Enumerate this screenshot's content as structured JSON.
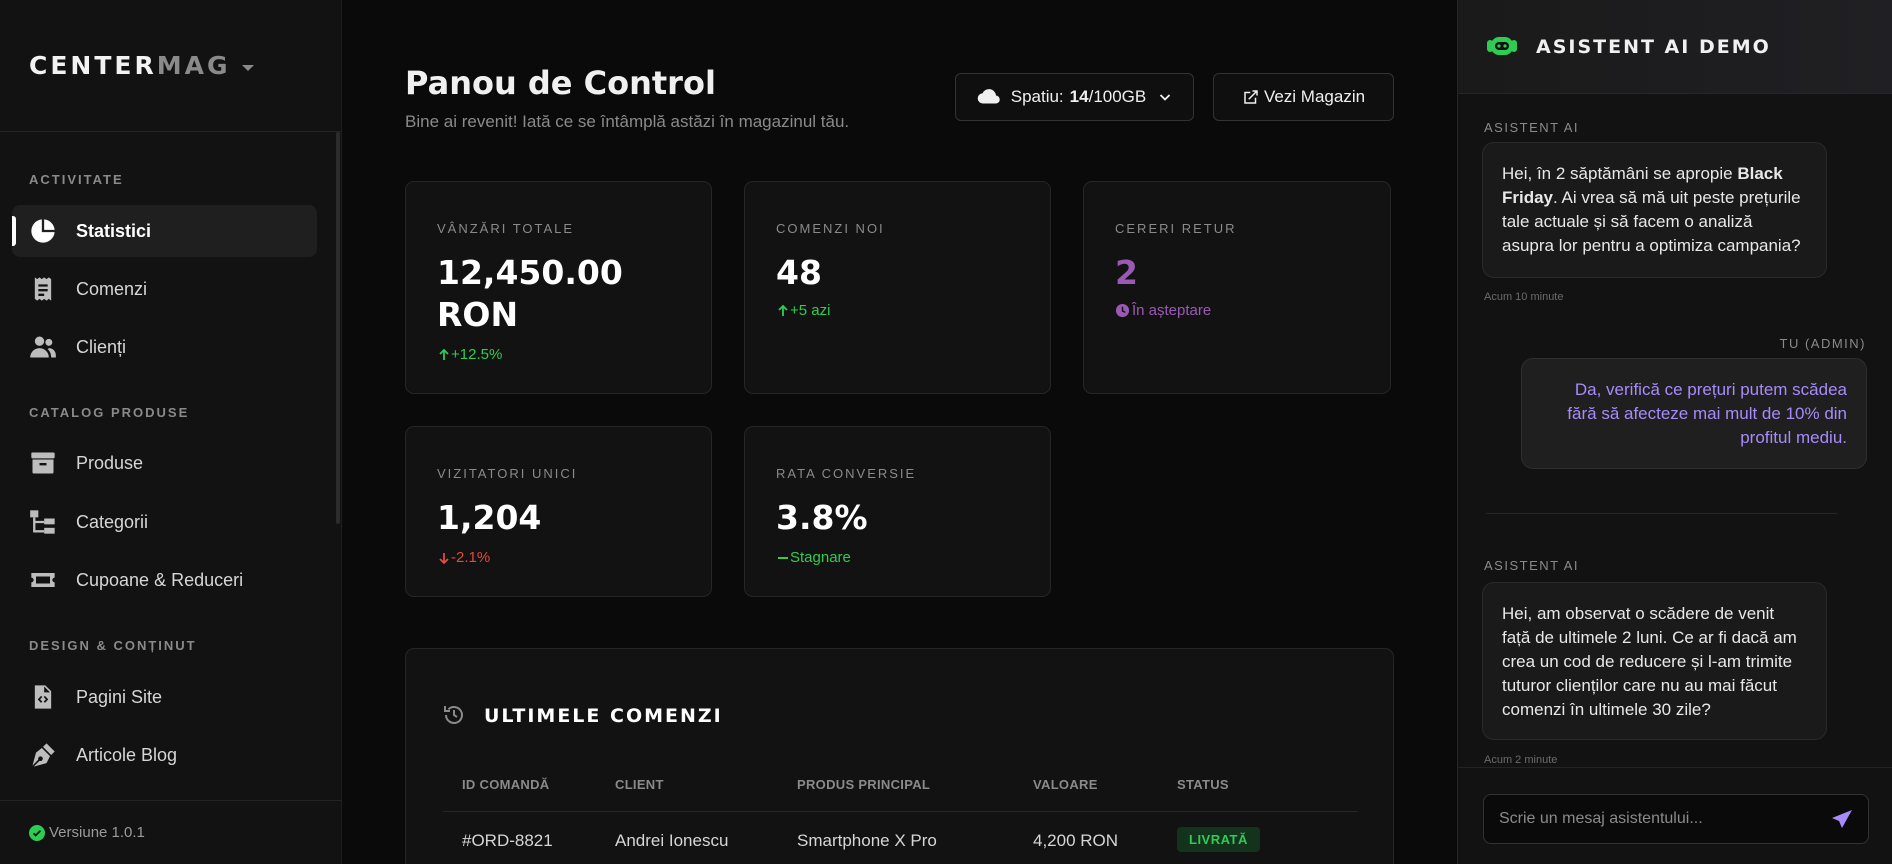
{
  "sidebar": {
    "logo": {
      "part1": "CENTER",
      "part2": "MAG"
    },
    "sections": [
      {
        "label": "ACTIVITATE"
      },
      {
        "label": "CATALOG PRODUSE"
      },
      {
        "label": "DESIGN & CONȚINUT"
      }
    ],
    "items": [
      {
        "label": "Statistici",
        "icon": "pie-chart-icon",
        "active": true
      },
      {
        "label": "Comenzi",
        "icon": "receipt-icon"
      },
      {
        "label": "Clienți",
        "icon": "users-icon"
      },
      {
        "label": "Produse",
        "icon": "archive-box-icon"
      },
      {
        "label": "Categorii",
        "icon": "sitemap-icon"
      },
      {
        "label": "Cupoane & Reduceri",
        "icon": "ticket-icon"
      },
      {
        "label": "Pagini Site",
        "icon": "code-file-icon"
      },
      {
        "label": "Articole Blog",
        "icon": "pen-nib-icon"
      }
    ],
    "version": "Versiune 1.0.1"
  },
  "header": {
    "title": "Panou de Control",
    "subtitle": "Bine ai revenit! Iată ce se întâmplă astăzi în magazinul tău.",
    "storage": {
      "label": "Spatiu:",
      "used": "14",
      "total": "/100GB"
    },
    "store_button": "Vezi Magazin"
  },
  "stats": [
    {
      "label": "VÂNZĂRI TOTALE",
      "value_line1": "12,450.00",
      "value_line2": "RON",
      "trend": "+12.5%"
    },
    {
      "label": "COMENZI NOI",
      "value": "48",
      "trend": "+5 azi"
    },
    {
      "label": "CERERI RETUR",
      "value": "2",
      "trend": "În așteptare"
    },
    {
      "label": "VIZITATORI UNICI",
      "value": "1,204",
      "trend": "-2.1%"
    },
    {
      "label": "RATA CONVERSIE",
      "value": "3.8%",
      "trend": "Stagnare"
    }
  ],
  "orders": {
    "title": "ULTIMELE COMENZI",
    "columns": [
      "ID COMANDĂ",
      "CLIENT",
      "PRODUS PRINCIPAL",
      "VALOARE",
      "STATUS"
    ],
    "rows": [
      {
        "id": "#ORD-8821",
        "client": "Andrei Ionescu",
        "product": "Smartphone X Pro",
        "value": "4,200 RON",
        "status": "LIVRATĂ"
      }
    ]
  },
  "chat": {
    "title": "ASISTENT AI DEMO",
    "messages": [
      {
        "sender": "ASISTENT AI",
        "pre": "Hei, în 2 săptămâni se apropie ",
        "bold": "Black Friday",
        "post": ". Ai vrea să mă uit peste prețurile tale actuale și să facem o analiză asupra lor pentru a optimiza campania?",
        "time": "Acum 10 minute"
      },
      {
        "sender": "TU (ADMIN)",
        "text": "Da, verifică ce prețuri putem scădea fără să afecteze mai mult de 10% din profitul mediu."
      },
      {
        "sender": "ASISTENT AI",
        "text": "Hei, am observat o scădere de venit față de ultimele 2 luni. Ce ar fi dacă am crea un cod de reducere și l-am trimite tuturor clienților care nu au mai făcut comenzi în ultimele 30 zile?",
        "time": "Acum 2 minute"
      }
    ],
    "input_placeholder": "Scrie un mesaj asistentului..."
  },
  "colors": {
    "accent_green": "#2ecc52",
    "accent_red": "#e5483e",
    "accent_purple": "#9b59b6",
    "user_text": "#a78bfa"
  }
}
